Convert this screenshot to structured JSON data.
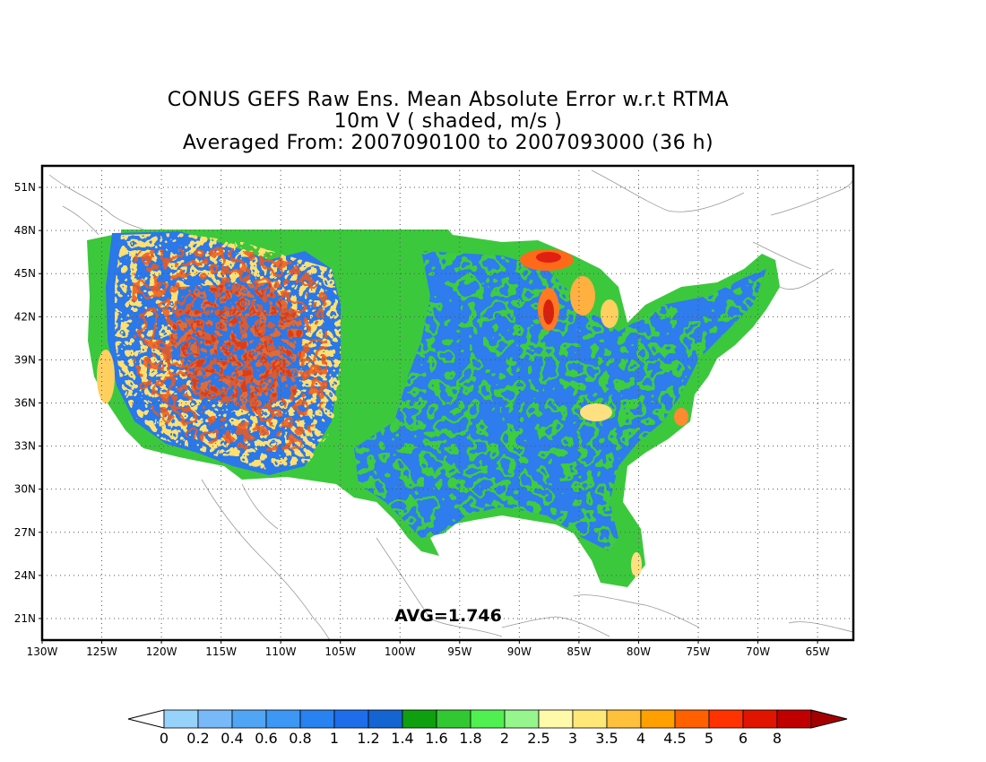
{
  "title": {
    "line1": "CONUS GEFS Raw Ens. Mean Absolute Error w.r.t RTMA",
    "line2": "10m V ( shaded, m/s )",
    "line3": "Averaged From: 2007090100 to 2007093000 (36 h)"
  },
  "avg_label": "AVG=1.746",
  "axes": {
    "lon_labels": [
      "130W",
      "125W",
      "120W",
      "115W",
      "110W",
      "105W",
      "100W",
      "95W",
      "90W",
      "85W",
      "80W",
      "75W",
      "70W",
      "65W"
    ],
    "lat_labels": [
      "51N",
      "48N",
      "45N",
      "42N",
      "39N",
      "36N",
      "33N",
      "30N",
      "27N",
      "24N",
      "21N"
    ],
    "lon_range": [
      -130,
      -62
    ],
    "lat_range": [
      19.5,
      52.5
    ],
    "grid": "dotted"
  },
  "colorbar": {
    "levels": [
      "0",
      "0.2",
      "0.4",
      "0.6",
      "0.8",
      "1",
      "1.2",
      "1.4",
      "1.6",
      "1.8",
      "2",
      "2.5",
      "3",
      "3.5",
      "4",
      "4.5",
      "5",
      "6",
      "8"
    ],
    "colors": [
      "#96d2fa",
      "#78b9fa",
      "#50a5f5",
      "#3c97f5",
      "#2882f0",
      "#1e6eeb",
      "#1464d2",
      "#0fa00f",
      "#32c832",
      "#50f050",
      "#96f58c",
      "#fffaaa",
      "#ffe878",
      "#ffc03c",
      "#ffa000",
      "#ff6000",
      "#ff3200",
      "#e11400",
      "#c00000"
    ],
    "under_color": "#ffffff",
    "over_color": "#a50000"
  }
}
